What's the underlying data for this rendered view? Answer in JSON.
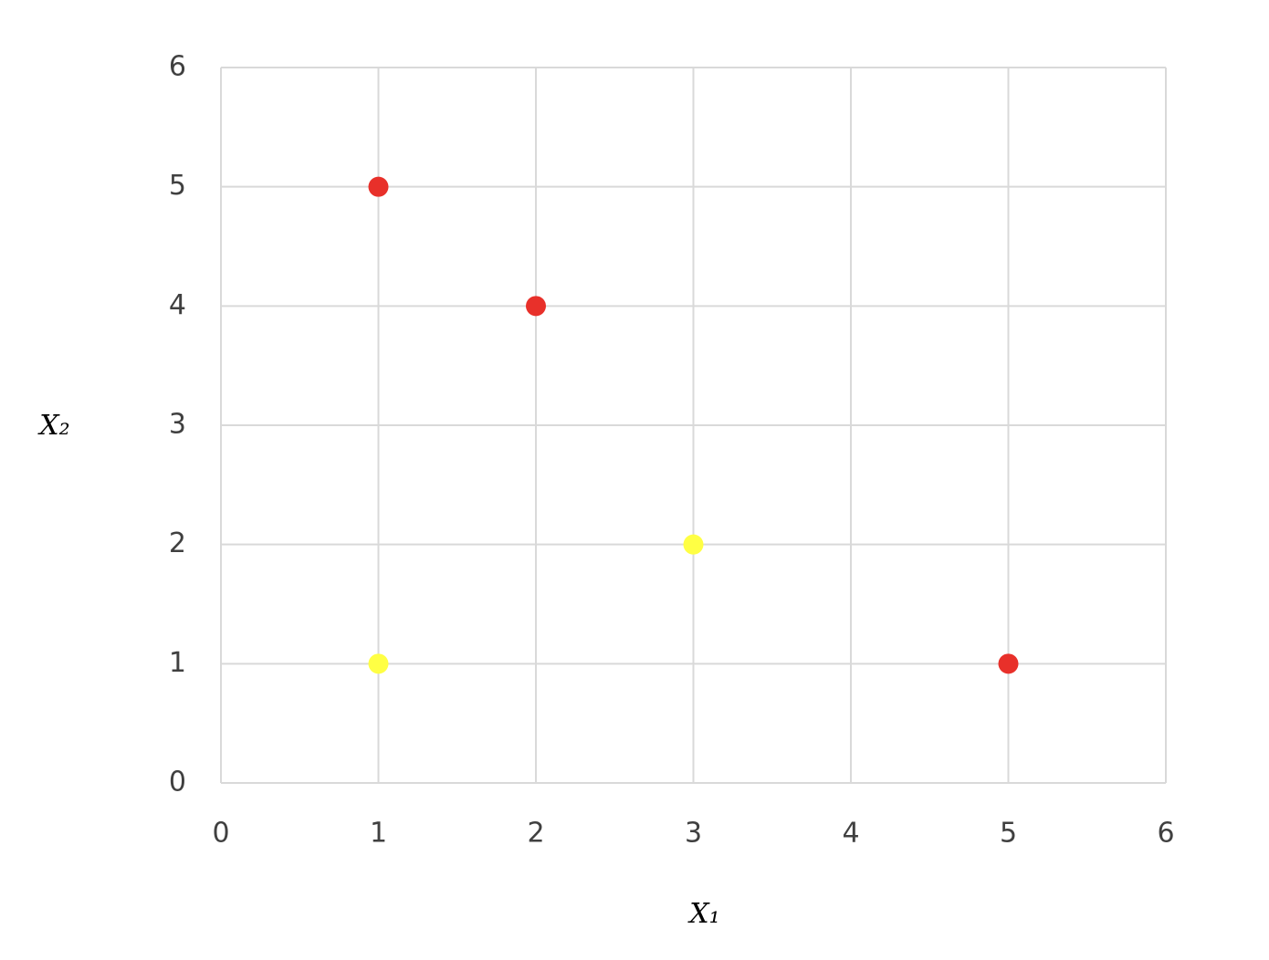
{
  "chart_data": {
    "type": "scatter",
    "xlabel": "X₁",
    "ylabel": "X₂",
    "series": [
      {
        "color": "#e8302a",
        "x": [
          1,
          2,
          5
        ],
        "values": [
          5,
          4,
          1
        ]
      },
      {
        "color": "#ffff44",
        "x": [
          1,
          3
        ],
        "values": [
          1,
          2
        ]
      }
    ],
    "xlim": [
      0,
      6
    ],
    "ylim": [
      0,
      6
    ],
    "xticks": [
      0,
      1,
      2,
      3,
      4,
      5,
      6
    ],
    "yticks": [
      0,
      1,
      2,
      3,
      4,
      5,
      6
    ],
    "grid": true
  }
}
